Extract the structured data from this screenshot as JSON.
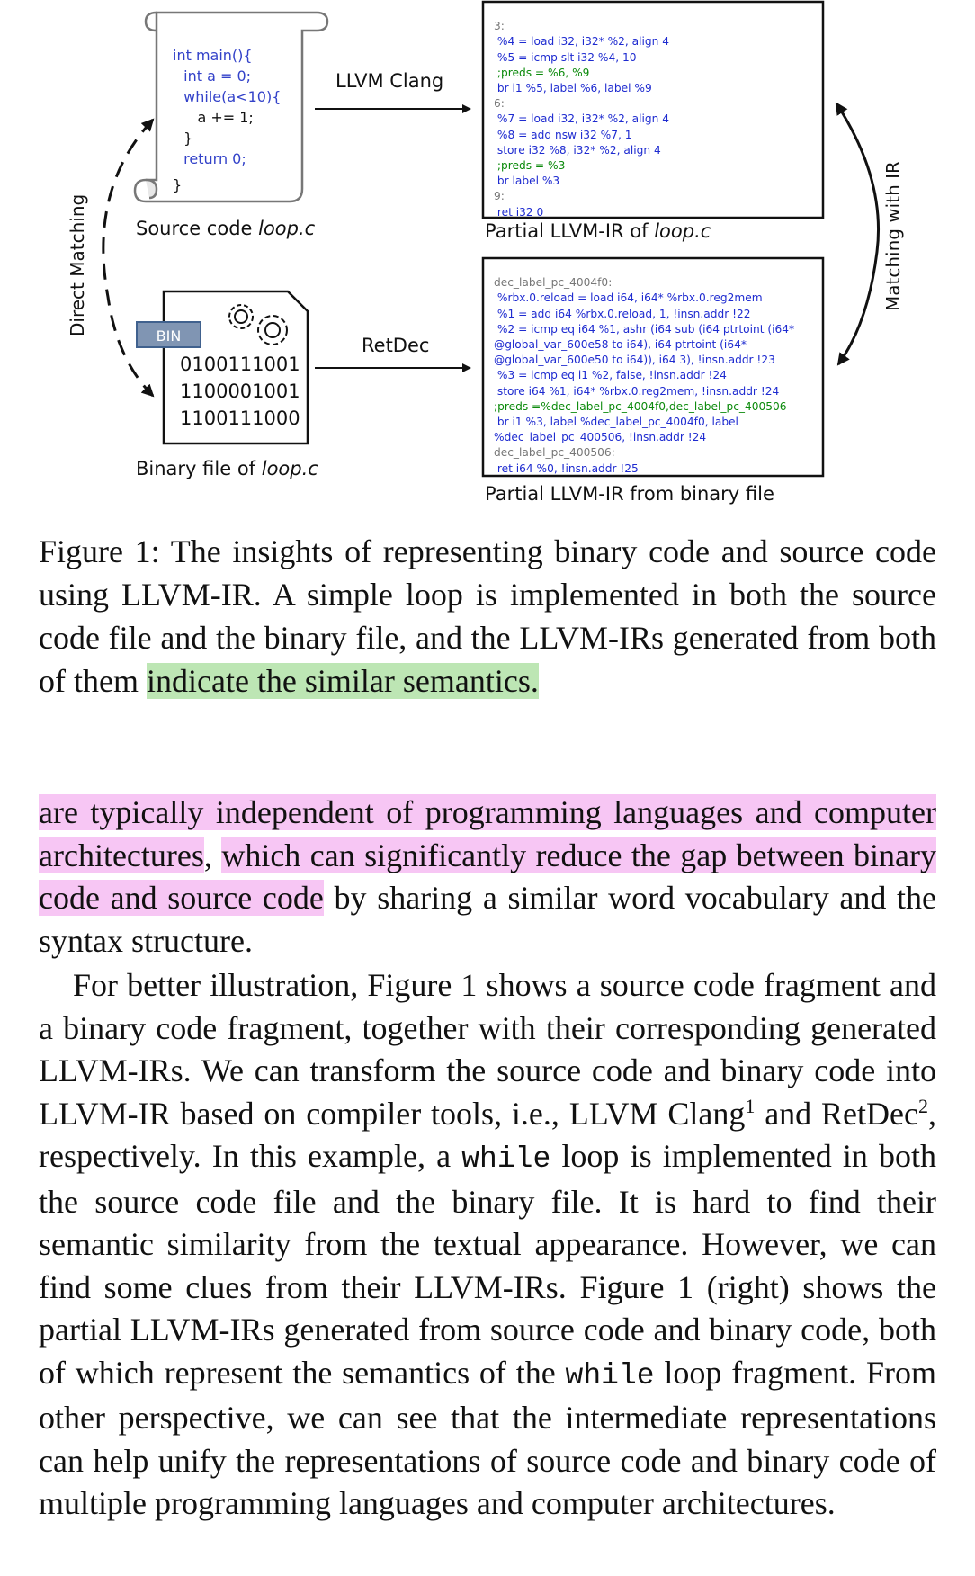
{
  "figure": {
    "source_code_lines": [
      "int main(){",
      "int a = 0;",
      "while(a<10){",
      "a += 1;",
      "}",
      "return 0;",
      "}"
    ],
    "source_label_prefix": "Source code ",
    "source_label_file": "loop.c",
    "binary_label_prefix": "Binary file of ",
    "binary_label_file": "loop.c",
    "bin_badge": "BIN",
    "binary_bits": [
      "0100111001",
      "1100001001",
      "1100111000"
    ],
    "llvm_clang_label": "LLVM Clang",
    "retdec_label": "RetDec",
    "direct_matching_label": "Direct Matching",
    "matching_with_ir_label": "Matching with IR",
    "ir_source_label_prefix": "Partial LLVM-IR of ",
    "ir_source_label_file": "loop.c",
    "ir_binary_label": "Partial LLVM-IR from binary file",
    "ir_source_lines": [
      "3:",
      "%4 = load i32, i32* %2, align 4",
      "%5 = icmp slt i32 %4, 10",
      ";preds = %6, %9",
      "br i1 %5, label %6, label %9",
      "6:",
      "%7 = load i32, i32* %2, align 4",
      "%8 = add nsw i32 %7, 1",
      "store i32 %8, i32* %2, align 4",
      ";preds = %3",
      "br label %3",
      "9:",
      "ret i32 0"
    ],
    "ir_binary_lines": [
      "dec_label_pc_4004f0:",
      "%rbx.0.reload = load i64, i64* %rbx.0.reg2mem",
      "%1 = add i64 %rbx.0.reload, 1, !insn.addr !22",
      "%2 = icmp eq i64 %1, ashr (i64 sub (i64 ptrtoint (i64*",
      "@global_var_600e58 to i64), i64 ptrtoint (i64*",
      "@global_var_600e50 to i64)), i64 3), !insn.addr !23",
      "%3 = icmp eq i1 %2, false, !insn.addr !24",
      "store i64 %1, i64* %rbx.0.reg2mem, !insn.addr !24",
      ";preds =%dec_label_pc_4004f0,dec_label_pc_400506",
      "br i1 %3, label %dec_label_pc_4004f0, label",
      "%dec_label_pc_400506, !insn.addr !24",
      "dec_label_pc_400506:",
      "ret i64 %0, !insn.addr !25"
    ]
  },
  "caption": {
    "text": "Figure 1: The insights of representing binary code and source code using LLVM-IR. A simple loop is implemented in both the source code file and the binary file, and the LLVM-IRs generated from both of them ",
    "highlight": "indicate the similar semantics."
  },
  "para1": {
    "hl1": "are typically independent of programming languages and computer architectures",
    "sep": ", ",
    "hl2": "which can significantly reduce the gap between binary code and source code",
    "rest": " by sharing a similar word vocabulary and the syntax structure."
  },
  "para2": {
    "t1": "For better illustration, Figure 1 shows a source code fragment and a binary code fragment, together with their corresponding generated LLVM-IRs. We can transform the source code and binary code into LLVM-IR based on compiler tools, i.e., LLVM Clang",
    "fn1": "1",
    "t2": " and RetDec",
    "fn2": "2",
    "t3": ", respectively. In this example, a ",
    "code1": "while",
    "t4": " loop is implemented in both the source code file and the binary file. It is hard to find their semantic similarity from the textual appearance. However, we can find some clues from their LLVM-IRs. Figure 1 (right) shows the partial LLVM-IRs generated from source code and binary code, both of which represent the semantics of the ",
    "code2": "while",
    "t5": " loop fragment. From other perspective, we can see that the intermediate representations can help unify the representations of source code and binary code of multiple programming languages and computer architectures."
  }
}
